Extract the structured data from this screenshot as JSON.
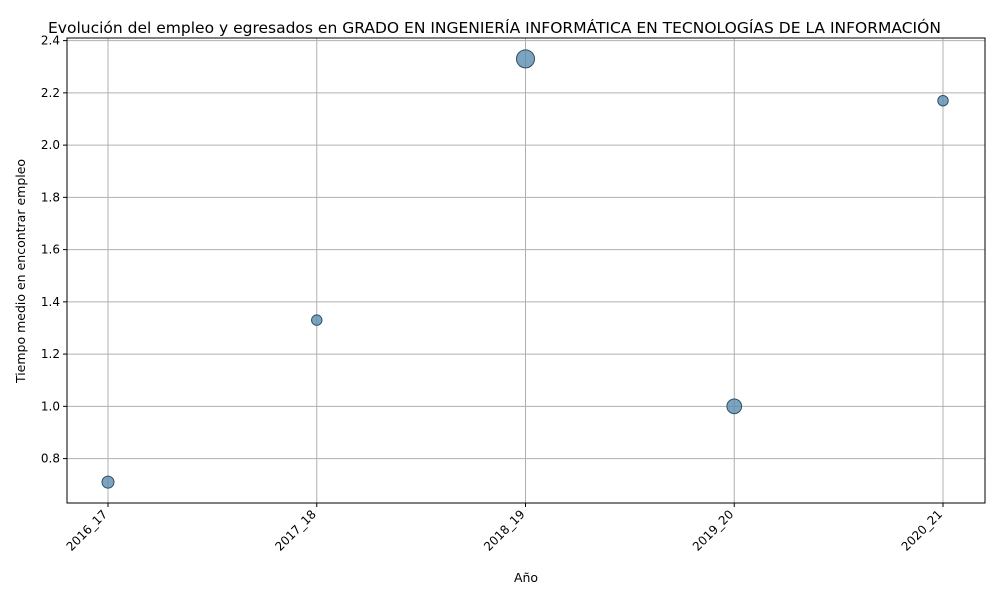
{
  "chart_data": {
    "type": "scatter",
    "title": "Evolución del empleo y egresados en GRADO EN INGENIERÍA INFORMÁTICA EN TECNOLOGÍAS DE LA INFORMACIÓN",
    "xlabel": "Año",
    "ylabel": "Tiempo medio en encontrar empleo",
    "categories": [
      "2016_17",
      "2017_18",
      "2018_19",
      "2019_20",
      "2020_21"
    ],
    "values": [
      0.71,
      1.33,
      2.33,
      1.0,
      2.17
    ],
    "relative_marker_size": [
      2,
      1.5,
      4.5,
      3,
      1.5
    ],
    "ylim": [
      0.63,
      2.41
    ],
    "yticks": [
      0.8,
      1.0,
      1.2,
      1.4,
      1.6,
      1.8,
      2.0,
      2.2,
      2.4
    ],
    "grid": true,
    "marker_color": "#5b8db0",
    "marker_edge_color": "#2f4f66",
    "grid_color": "#b0b0b0"
  }
}
